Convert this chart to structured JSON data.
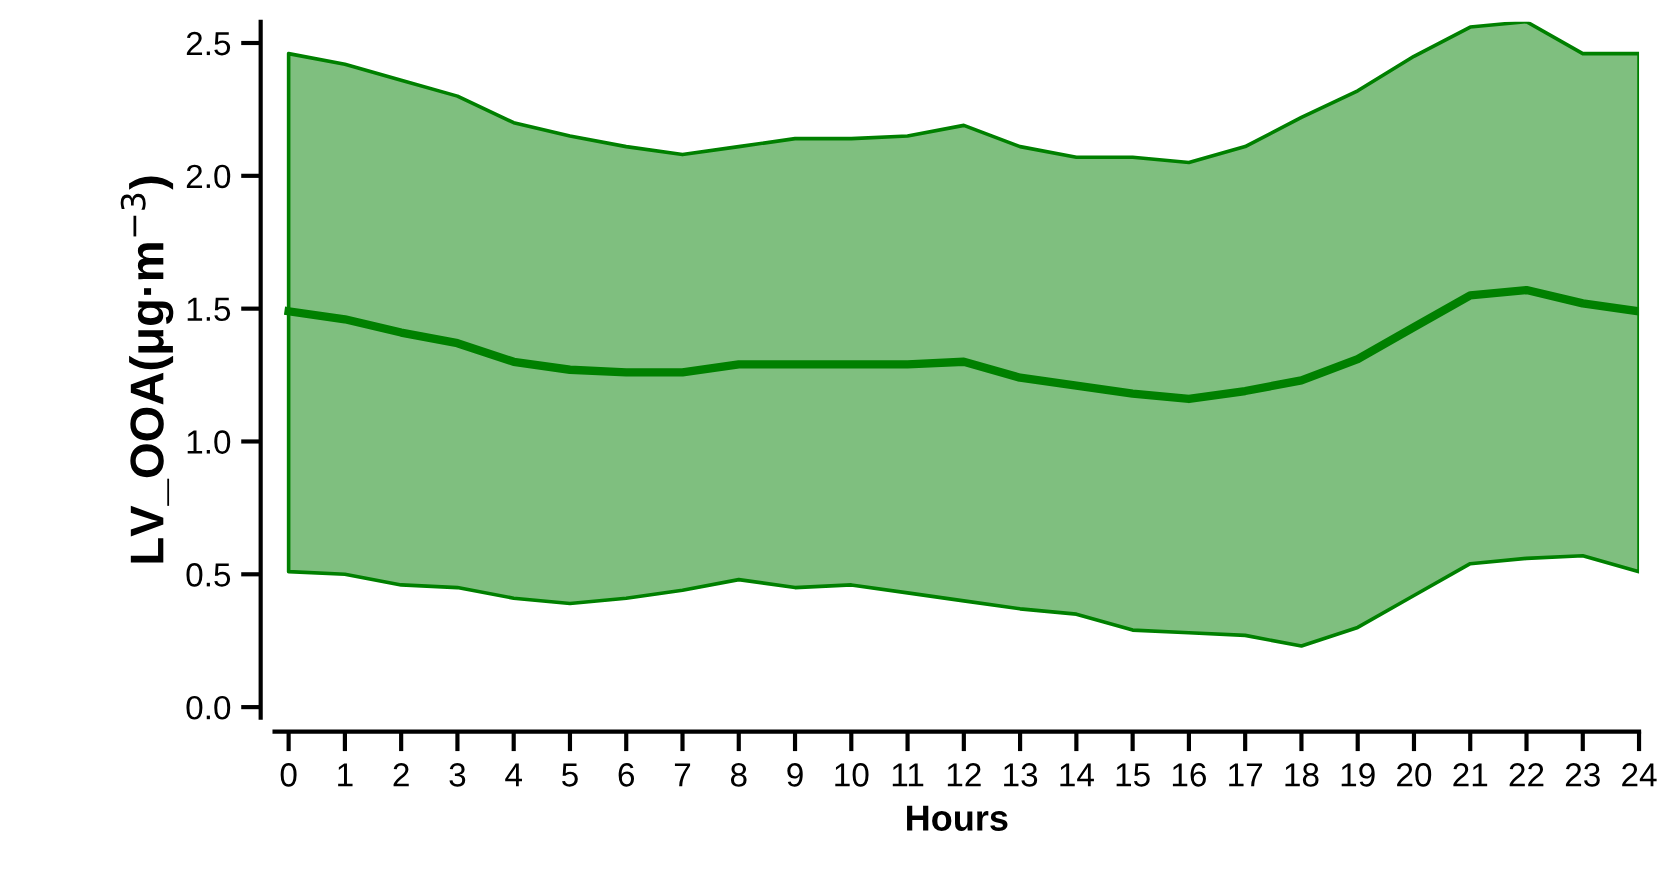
{
  "chart_data": {
    "type": "line",
    "xlabel": "Hours",
    "ylabel": "LV_OOA(μg·m$^{−3}$)",
    "x": [
      0,
      1,
      2,
      3,
      4,
      5,
      6,
      7,
      8,
      9,
      10,
      11,
      12,
      13,
      14,
      15,
      16,
      17,
      18,
      19,
      20,
      21,
      22,
      23,
      24
    ],
    "series": [
      {
        "color": "#008000",
        "values": [
          1.49,
          1.46,
          1.41,
          1.37,
          1.3,
          1.27,
          1.26,
          1.26,
          1.29,
          1.29,
          1.29,
          1.29,
          1.3,
          1.24,
          1.21,
          1.18,
          1.16,
          1.19,
          1.23,
          1.31,
          1.43,
          1.55,
          1.57,
          1.52,
          1.49
        ],
        "lower": [
          0.51,
          0.5,
          0.46,
          0.45,
          0.41,
          0.39,
          0.41,
          0.44,
          0.48,
          0.45,
          0.46,
          0.43,
          0.4,
          0.37,
          0.35,
          0.29,
          0.28,
          0.27,
          0.23,
          0.3,
          0.42,
          0.54,
          0.56,
          0.57,
          0.51
        ],
        "upper": [
          2.46,
          2.42,
          2.36,
          2.3,
          2.2,
          2.15,
          2.11,
          2.08,
          2.11,
          2.14,
          2.14,
          2.15,
          2.19,
          2.11,
          2.07,
          2.07,
          2.05,
          2.11,
          2.22,
          2.32,
          2.45,
          2.56,
          2.58,
          2.46,
          2.46
        ]
      }
    ],
    "xlim": [
      -0.25,
      24
    ],
    "ylim": [
      -0.04,
      2.58
    ],
    "xticks": [
      0,
      1,
      2,
      3,
      4,
      5,
      6,
      7,
      8,
      9,
      10,
      11,
      12,
      13,
      14,
      15,
      16,
      17,
      18,
      19,
      20,
      21,
      22,
      23,
      24
    ],
    "yticks": [
      {
        "value": 0,
        "label": "0.0"
      },
      {
        "value": 0.5,
        "label": "0.5"
      },
      {
        "value": 1,
        "label": "1.0"
      },
      {
        "value": 1.5,
        "label": "1.5"
      },
      {
        "value": 2,
        "label": "2.0"
      },
      {
        "value": 2.5,
        "label": "2.5"
      }
    ],
    "grid": false,
    "line_style": "solid",
    "marker": "none"
  }
}
